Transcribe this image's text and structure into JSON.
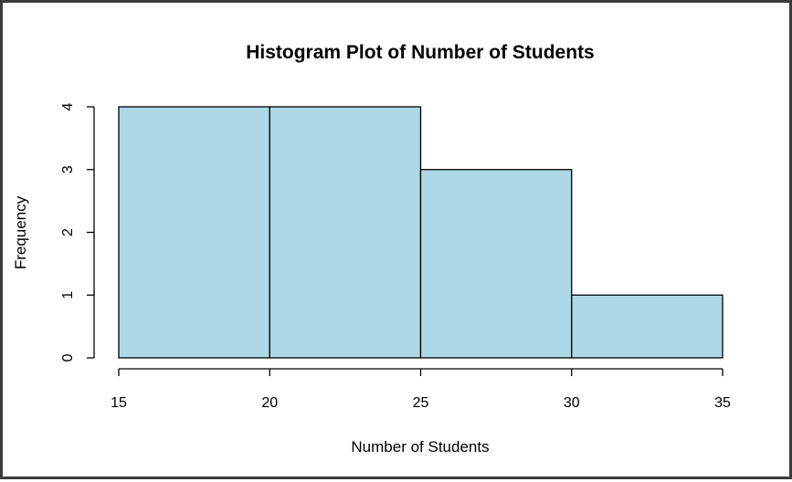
{
  "chart_data": {
    "type": "bar",
    "title": "Histogram Plot of Number of Students",
    "xlabel": "Number of Students",
    "ylabel": "Frequency",
    "bins": [
      {
        "from": 15,
        "to": 20,
        "count": 4
      },
      {
        "from": 20,
        "to": 25,
        "count": 4
      },
      {
        "from": 25,
        "to": 30,
        "count": 3
      },
      {
        "from": 30,
        "to": 35,
        "count": 1
      }
    ],
    "xlim": [
      15,
      35
    ],
    "ylim": [
      0,
      4
    ],
    "x_ticks": [
      15,
      20,
      25,
      30,
      35
    ],
    "y_ticks": [
      0,
      1,
      2,
      3,
      4
    ],
    "grid": false,
    "legend": "none",
    "bar_color": "#add8e6",
    "edge_color": "#000000"
  }
}
